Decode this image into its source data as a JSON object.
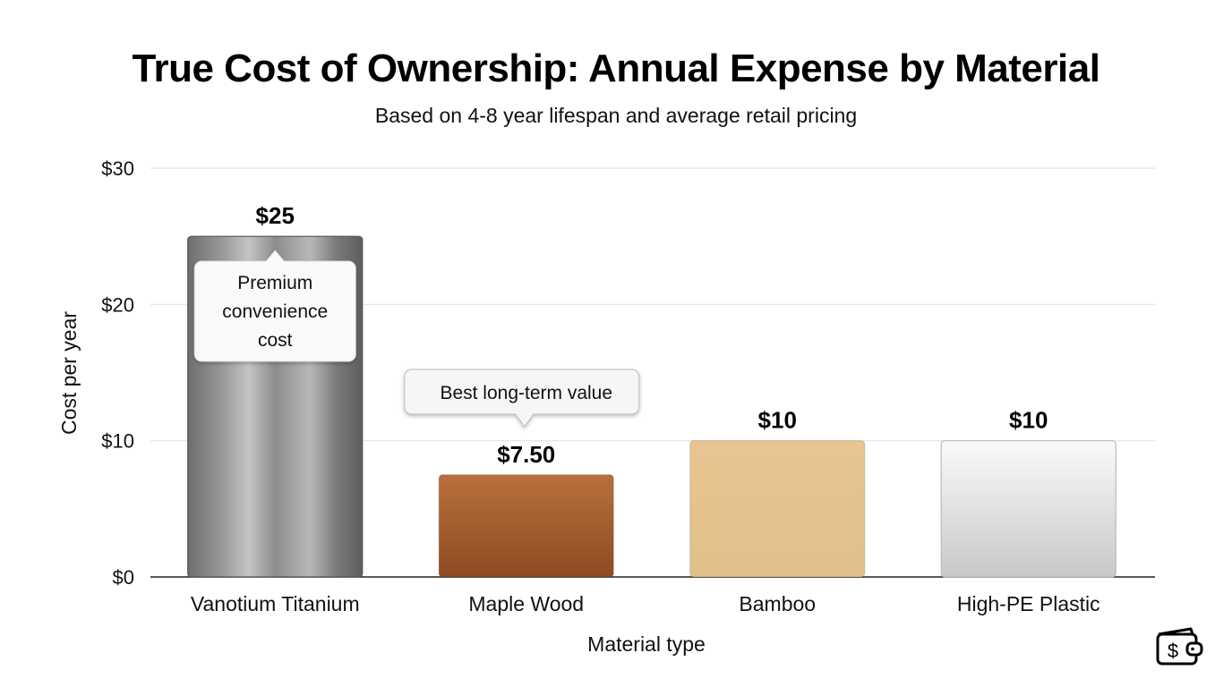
{
  "chart_data": {
    "type": "bar",
    "title": "True Cost of Ownership: Annual Expense by Material",
    "subtitle": "Based on 4-8 year lifespan and average retail pricing",
    "xlabel": "Material type",
    "ylabel": "Cost per year",
    "ylim": [
      0,
      30
    ],
    "yticks": [
      0,
      10,
      20,
      30
    ],
    "ytick_labels": [
      "$0",
      "$10",
      "$20",
      "$30"
    ],
    "grid": true,
    "categories": [
      "Vanotium Titanium",
      "Maple Wood",
      "Bamboo",
      "High-PE Plastic"
    ],
    "values": [
      25,
      7.5,
      10,
      10
    ],
    "data_labels": [
      "$25",
      "$7.50",
      "$10",
      "$10"
    ],
    "colors": [
      "#8a8a8a",
      "#a4582a",
      "#e5c48f",
      "#e6e6e6"
    ],
    "annotations": [
      {
        "category": "Vanotium Titanium",
        "lines": [
          "Premium",
          "convenience",
          "cost"
        ]
      },
      {
        "category": "Maple Wood",
        "text": "Best long-term value"
      }
    ]
  },
  "icons": {
    "corner": "wallet-dollar-icon"
  }
}
